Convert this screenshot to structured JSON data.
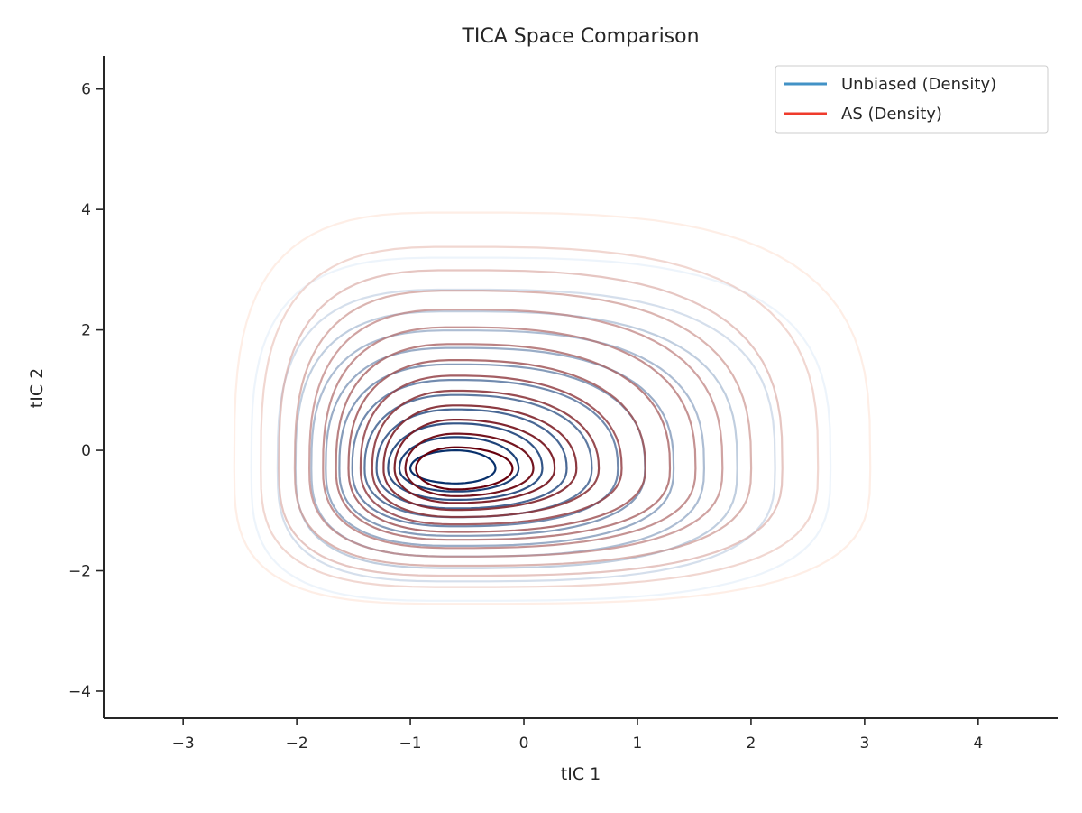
{
  "chart_data": {
    "type": "contour",
    "title": "TICA Space Comparison",
    "xlabel": "tIC 1",
    "ylabel": "tIC 2",
    "xlim": [
      -3.7,
      4.7
    ],
    "ylim": [
      -4.45,
      6.55
    ],
    "xticks": [
      -3,
      -2,
      -1,
      0,
      1,
      2,
      3,
      4
    ],
    "xtick_labels": [
      "−3",
      "−2",
      "−1",
      "0",
      "1",
      "2",
      "3",
      "4"
    ],
    "yticks": [
      -4,
      -2,
      0,
      2,
      4,
      6
    ],
    "ytick_labels": [
      "−4",
      "−2",
      "0",
      "2",
      "4",
      "6"
    ],
    "grid": false,
    "legend_position": "top-right",
    "series": [
      {
        "name": "Unbiased (Density)",
        "color": "#4292c6",
        "center": [
          -0.6,
          -0.3
        ],
        "outer_extent": {
          "xmin": -2.4,
          "xmax": 2.7,
          "ymin": -2.5,
          "ymax": 3.2
        },
        "inner_extent": {
          "xmin": -1.0,
          "xmax": -0.25,
          "ymin": -0.55,
          "ymax": 0.0
        },
        "levels": 12,
        "light_color": "#deebf7",
        "dark_color": "#08306b"
      },
      {
        "name": "AS (Density)",
        "color": "#ef3b2c",
        "center": [
          -0.6,
          -0.3
        ],
        "outer_extent": {
          "xmin": -2.55,
          "xmax": 3.05,
          "ymin": -2.55,
          "ymax": 3.95
        },
        "inner_extent": {
          "xmin": -0.95,
          "xmax": -0.1,
          "ymin": -0.65,
          "ymax": 0.05
        },
        "levels": 14,
        "light_color": "#fee0d2",
        "dark_color": "#67000d"
      }
    ]
  }
}
